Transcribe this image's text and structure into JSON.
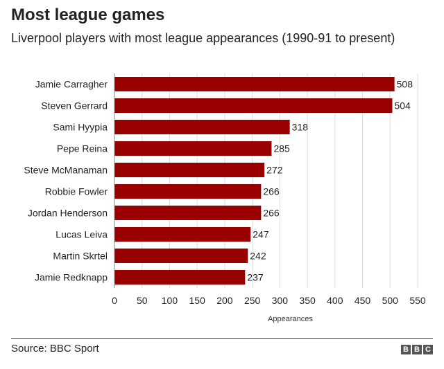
{
  "header": {
    "title": "Most league games",
    "subtitle": "Liverpool players with most league appearances (1990-91 to present)"
  },
  "footer": {
    "source": "Source: BBC Sport",
    "logo_letters": [
      "B",
      "B",
      "C"
    ]
  },
  "chart_data": {
    "type": "bar",
    "orientation": "horizontal",
    "title": "Most league games",
    "subtitle": "Liverpool players with most league appearances (1990-91 to present)",
    "xlabel": "Appearances",
    "ylabel": "",
    "categories": [
      "Jamie Carragher",
      "Steven Gerrard",
      "Sami Hyypia",
      "Pepe Reina",
      "Steve McManaman",
      "Robbie Fowler",
      "Jordan Henderson",
      "Lucas Leiva",
      "Martin Skrtel",
      "Jamie Redknapp"
    ],
    "values": [
      508,
      504,
      318,
      285,
      272,
      266,
      266,
      247,
      242,
      237
    ],
    "xlim": [
      0,
      550
    ],
    "xticks": [
      0,
      50,
      100,
      150,
      200,
      250,
      300,
      350,
      400,
      450,
      500,
      550
    ],
    "grid": "vertical",
    "bar_color": "#990000",
    "grid_color": "#dddddd"
  }
}
